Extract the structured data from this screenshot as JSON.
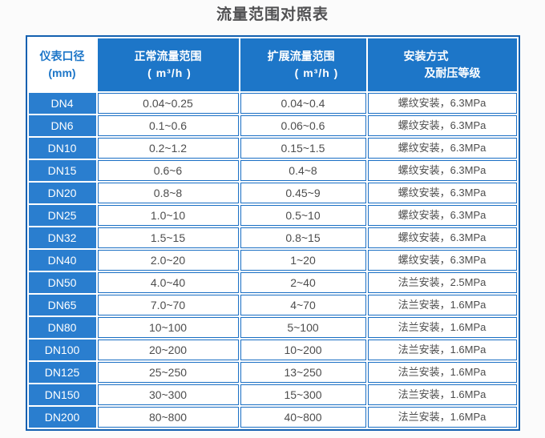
{
  "title": "流量范围对照表",
  "colors": {
    "header_blue": "#1d76c8",
    "row_label_blue": "#2a7ecf",
    "border_blue": "#1a6fc4",
    "outer_border_blue": "#1360b0",
    "text_dark": "#4d4d4d"
  },
  "chart_data": {
    "type": "table",
    "title": "流量范围对照表",
    "header": {
      "col1": {
        "line1": "仪表口径",
        "line2": "(mm)"
      },
      "col2": {
        "line1": "正常流量范围",
        "line2": "( m³/h )"
      },
      "col3": {
        "line1": "扩展流量范围",
        "line2": "( m³/h )"
      },
      "col4": {
        "line1": "安装方式",
        "line2": "及耐压等级"
      }
    },
    "columns": [
      "仪表口径 (mm)",
      "正常流量范围 ( m³/h )",
      "扩展流量范围 ( m³/h )",
      "安装方式及耐压等级"
    ],
    "rows": [
      [
        "DN4",
        "0.04~0.25",
        "0.04~0.4",
        "螺纹安装，6.3MPa"
      ],
      [
        "DN6",
        "0.1~0.6",
        "0.06~0.6",
        "螺纹安装，6.3MPa"
      ],
      [
        "DN10",
        "0.2~1.2",
        "0.15~1.5",
        "螺纹安装，6.3MPa"
      ],
      [
        "DN15",
        "0.6~6",
        "0.4~8",
        "螺纹安装，6.3MPa"
      ],
      [
        "DN20",
        "0.8~8",
        "0.45~9",
        "螺纹安装，6.3MPa"
      ],
      [
        "DN25",
        "1.0~10",
        "0.5~10",
        "螺纹安装，6.3MPa"
      ],
      [
        "DN32",
        "1.5~15",
        "0.8~15",
        "螺纹安装，6.3MPa"
      ],
      [
        "DN40",
        "2.0~20",
        "1~20",
        "螺纹安装，6.3MPa"
      ],
      [
        "DN50",
        "4.0~40",
        "2~40",
        "法兰安装，2.5MPa"
      ],
      [
        "DN65",
        "7.0~70",
        "4~70",
        "法兰安装，1.6MPa"
      ],
      [
        "DN80",
        "10~100",
        "5~100",
        "法兰安装，1.6MPa"
      ],
      [
        "DN100",
        "20~200",
        "10~200",
        "法兰安装，1.6MPa"
      ],
      [
        "DN125",
        "25~250",
        "13~250",
        "法兰安装，1.6MPa"
      ],
      [
        "DN150",
        "30~300",
        "15~300",
        "法兰安装，1.6MPa"
      ],
      [
        "DN200",
        "80~800",
        "40~800",
        "法兰安装，1.6MPa"
      ]
    ]
  }
}
